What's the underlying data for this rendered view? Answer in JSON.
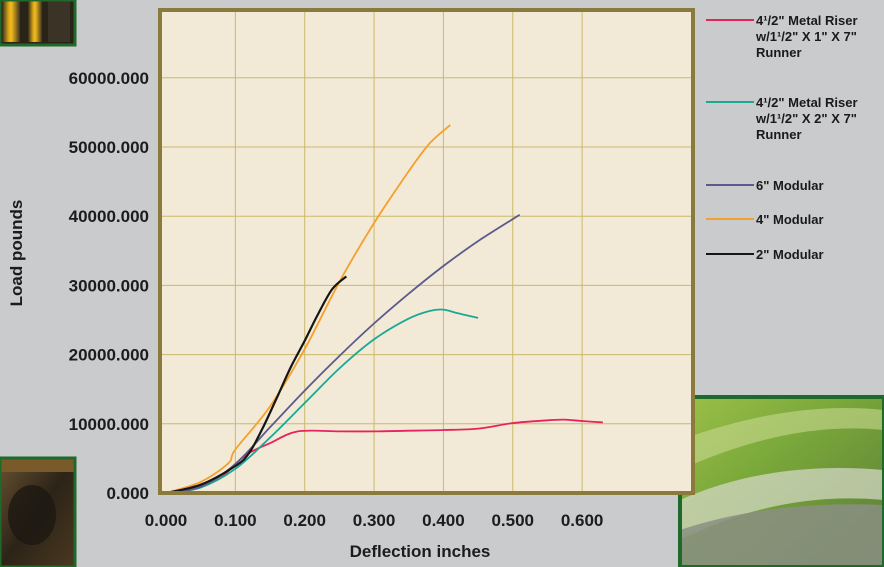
{
  "colors": {
    "page_background": "#c9cbcc",
    "plot_background": "#f2ead7",
    "plot_frame": "#8a7a3c",
    "grid": "#c9b96a"
  },
  "photos": [
    {
      "name": "top-left-photo",
      "description": "Photo of yellow-and-black metal structure"
    },
    {
      "name": "bottom-left-photo",
      "description": "Photo of dark interior with wooden frame"
    },
    {
      "name": "bottom-right-photo",
      "description": "Photo of green curved metal surface"
    }
  ],
  "chart_data": {
    "type": "line",
    "xlabel": "Deflection inches",
    "ylabel": "Load pounds",
    "xlim": [
      0,
      0.7
    ],
    "ylim": [
      0,
      70000
    ],
    "x_ticks": [
      "0.000",
      "0.100",
      "0.200",
      "0.300",
      "0.400",
      "0.500",
      "0.600"
    ],
    "y_ticks": [
      "0.000",
      "10000.000",
      "20000.000",
      "30000.000",
      "40000.000",
      "50000.000",
      "60000.000"
    ],
    "grid": true,
    "legend_position": "right",
    "series": [
      {
        "name": "4<sup>1</sup>/2\" Metal Riser w/1<sup>1</sup>/2\" X 1\" X 7\" Runner",
        "legend_lines": [
          "4¹/2\" Metal Riser",
          "w/1¹/2\" X 1\" X 7\"",
          "Runner"
        ],
        "color": "#e8225a",
        "x": [
          0.0,
          0.05,
          0.08,
          0.1,
          0.12,
          0.15,
          0.19,
          0.25,
          0.3,
          0.35,
          0.4,
          0.45,
          0.5,
          0.55,
          0.575,
          0.6,
          0.63
        ],
        "y": [
          0,
          900,
          2300,
          4200,
          5800,
          7200,
          8900,
          8900,
          8900,
          9000,
          9100,
          9300,
          10100,
          10500,
          10600,
          10400,
          10200
        ]
      },
      {
        "name": "4<sup>1</sup>/2\" Metal Riser w/1<sup>1</sup>/2\" X 2\" X 7\" Runner",
        "legend_lines": [
          "4¹/2\" Metal Riser",
          "w/1¹/2\" X 2\" X 7\"",
          "Runner"
        ],
        "color": "#1aa896",
        "x": [
          0.0,
          0.05,
          0.1,
          0.15,
          0.2,
          0.25,
          0.3,
          0.35,
          0.38,
          0.4,
          0.42,
          0.45
        ],
        "y": [
          0,
          800,
          3500,
          8000,
          13000,
          18000,
          22200,
          25200,
          26300,
          26500,
          26000,
          25300
        ]
      },
      {
        "name": "6\" Modular",
        "legend_lines": [
          "6\" Modular"
        ],
        "color": "#5c5a8c",
        "x": [
          0.0,
          0.05,
          0.1,
          0.15,
          0.2,
          0.25,
          0.3,
          0.35,
          0.4,
          0.45,
          0.51
        ],
        "y": [
          0,
          900,
          4200,
          9500,
          14800,
          19800,
          24500,
          28800,
          32800,
          36400,
          40200
        ]
      },
      {
        "name": "4\" Modular",
        "legend_lines": [
          "4\" Modular"
        ],
        "color": "#f5a02a",
        "x": [
          0.0,
          0.05,
          0.09,
          0.1,
          0.15,
          0.2,
          0.25,
          0.3,
          0.35,
          0.38,
          0.41
        ],
        "y": [
          0,
          1600,
          4300,
          6300,
          12500,
          20800,
          30500,
          39000,
          46500,
          50500,
          53200
        ]
      },
      {
        "name": "2\" Modular",
        "legend_lines": [
          "2\" Modular"
        ],
        "color": "#161616",
        "x": [
          0.0,
          0.05,
          0.1,
          0.12,
          0.14,
          0.16,
          0.18,
          0.2,
          0.22,
          0.24,
          0.26
        ],
        "y": [
          0,
          1200,
          3900,
          5800,
          9500,
          13800,
          18200,
          22000,
          26000,
          29500,
          31300
        ]
      }
    ]
  }
}
